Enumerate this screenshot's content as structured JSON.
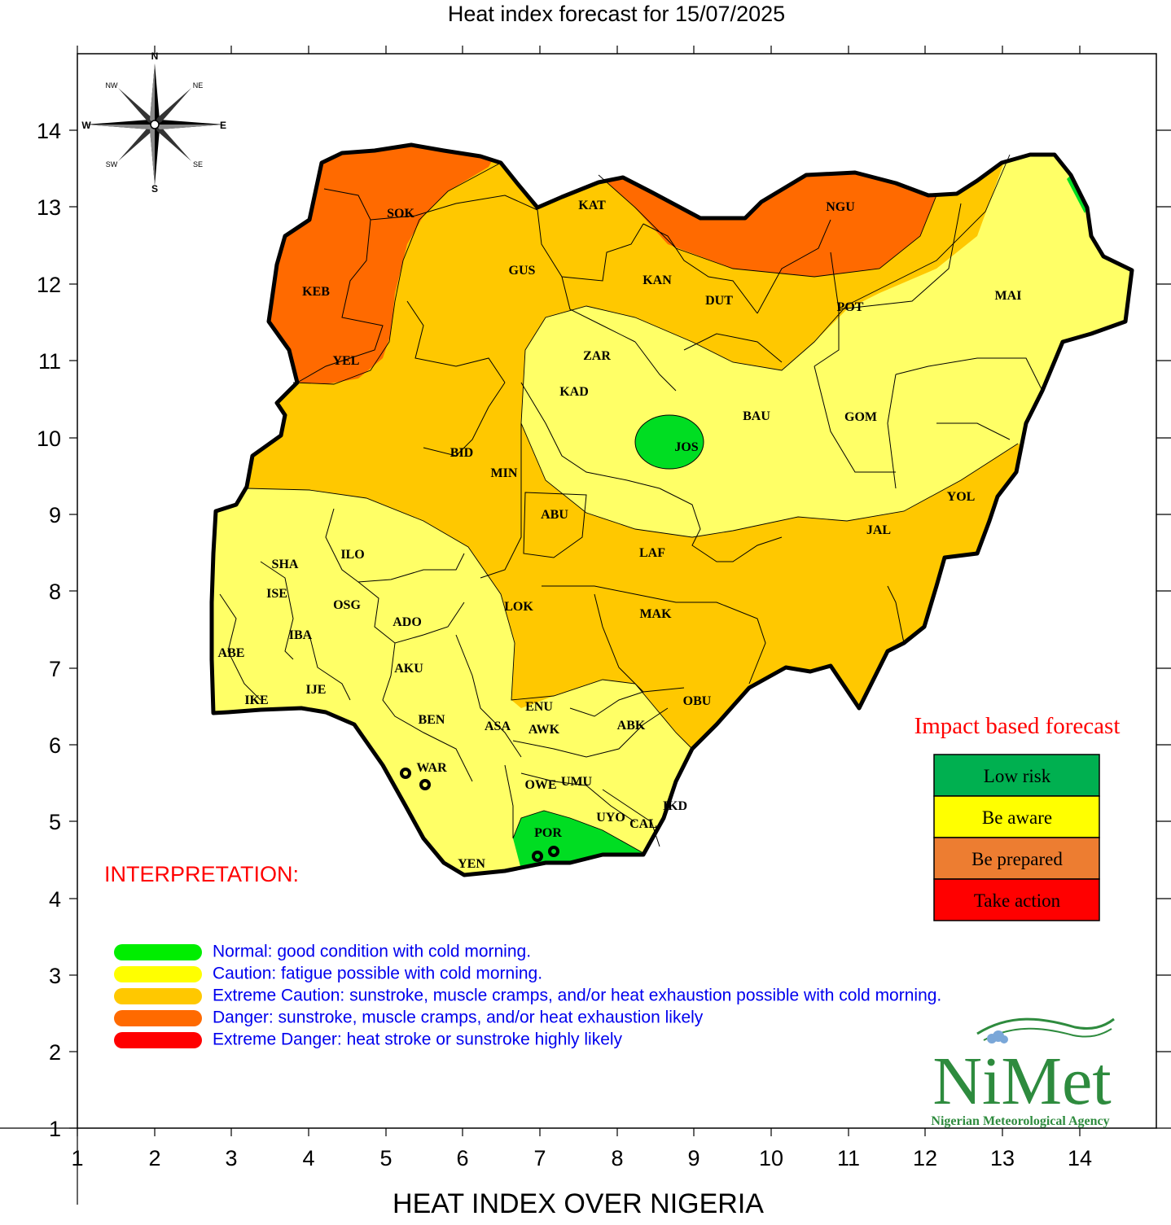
{
  "title": "Heat index forecast for 15/07/2025",
  "footer_title": "HEAT INDEX OVER NIGERIA",
  "axes": {
    "x_ticks": [
      "1",
      "2",
      "3",
      "4",
      "5",
      "6",
      "7",
      "8",
      "9",
      "10",
      "11",
      "12",
      "13",
      "14"
    ],
    "y_ticks": [
      "14",
      "13",
      "12",
      "11",
      "10",
      "9",
      "8",
      "7",
      "6",
      "5",
      "4",
      "3",
      "2",
      "1"
    ]
  },
  "compass": {
    "n": "N",
    "s": "S",
    "e": "E",
    "w": "W",
    "ne": "NE",
    "nw": "NW",
    "se": "SE",
    "sw": "SW"
  },
  "regions": [
    "SOK",
    "KAT",
    "NGU",
    "KEB",
    "GUS",
    "KAN",
    "DUT",
    "POT",
    "MAI",
    "YEL",
    "ZAR",
    "KAD",
    "BAU",
    "GOM",
    "JOS",
    "BID",
    "MIN",
    "ABU",
    "YOL",
    "JAL",
    "SHA",
    "ILO",
    "LAF",
    "ISE",
    "OSG",
    "ADO",
    "LOK",
    "MAK",
    "IBA",
    "ABE",
    "AKU",
    "IKE",
    "IJE",
    "ENU",
    "OBU",
    "BEN",
    "ASA",
    "AWK",
    "ABK",
    "WAR",
    "OWE",
    "UMU",
    "IKD",
    "UYO",
    "CAL",
    "POR",
    "YEN"
  ],
  "impact_forecast": {
    "title": "Impact based forecast",
    "items": [
      {
        "label": "Low risk",
        "color": "#00b050"
      },
      {
        "label": "Be aware",
        "color": "#ffff00"
      },
      {
        "label": "Be prepared",
        "color": "#ed7d31"
      },
      {
        "label": "Take action",
        "color": "#ff0000"
      }
    ]
  },
  "interpretation": {
    "title": "INTERPRETATION:",
    "items": [
      {
        "text": "Normal: good condition with cold morning.",
        "color": "#00ee00"
      },
      {
        "text": "Caution: fatigue possible  with cold morning.",
        "color": "#ffff00"
      },
      {
        "text": "Extreme Caution: sunstroke, muscle cramps, and/or heat exhaustion possible  with cold morning.",
        "color": "#ffc800"
      },
      {
        "text": "Danger: sunstroke, muscle cramps, and/or heat exhaustion likely",
        "color": "#ff6a00"
      },
      {
        "text": "Extreme Danger: heat stroke or sunstroke highly likely",
        "color": "#ff0000"
      }
    ]
  },
  "colors": {
    "caution": "#ffff66",
    "extreme_caution": "#ffc800",
    "danger": "#ff6a00",
    "normal": "#00dd22"
  },
  "logo": {
    "name": "NiMet",
    "subtitle": "Nigerian Meteorological Agency"
  }
}
